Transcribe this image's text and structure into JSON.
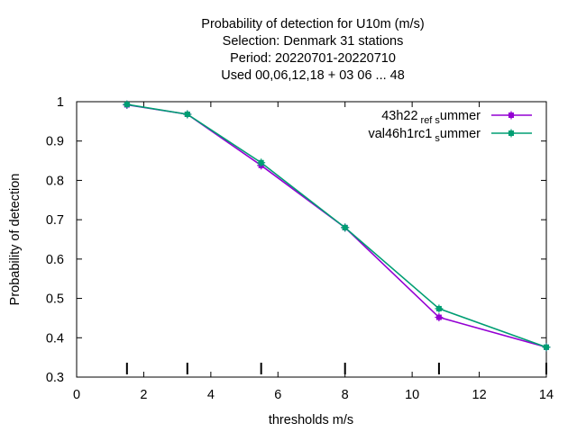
{
  "chart_data": {
    "type": "line",
    "title_lines": [
      "Probability of detection  for U10m (m/s)",
      "Selection: Denmark     31 stations",
      "Period: 20220701-20220710",
      "Used  00,06,12,18  + 03 06 ... 48"
    ],
    "xlabel": "thresholds m/s",
    "ylabel": "Probability of detection",
    "xlim": [
      0,
      14
    ],
    "ylim": [
      0.3,
      1
    ],
    "xticks": [
      0,
      2,
      4,
      6,
      8,
      10,
      12,
      14
    ],
    "yticks": [
      0.3,
      0.4,
      0.5,
      0.6,
      0.7,
      0.8,
      0.9,
      1
    ],
    "x": [
      1.5,
      3.3,
      5.5,
      8,
      10.8,
      14
    ],
    "threshold_marks": [
      1.5,
      3.3,
      5.5,
      8,
      10.8,
      14
    ],
    "legend_position": "top-right",
    "series": [
      {
        "name": "43h22",
        "name_sub": "ref",
        "name_tail": "s",
        "name_end": "ummer",
        "color": "#9400d3",
        "values": [
          0.992,
          0.968,
          0.838,
          0.68,
          0.452,
          0.376
        ]
      },
      {
        "name": "val46h1rc1",
        "name_sub": "",
        "name_tail": "s",
        "name_end": "ummer",
        "color": "#009e73",
        "values": [
          0.993,
          0.968,
          0.845,
          0.68,
          0.474,
          0.376
        ]
      }
    ]
  }
}
